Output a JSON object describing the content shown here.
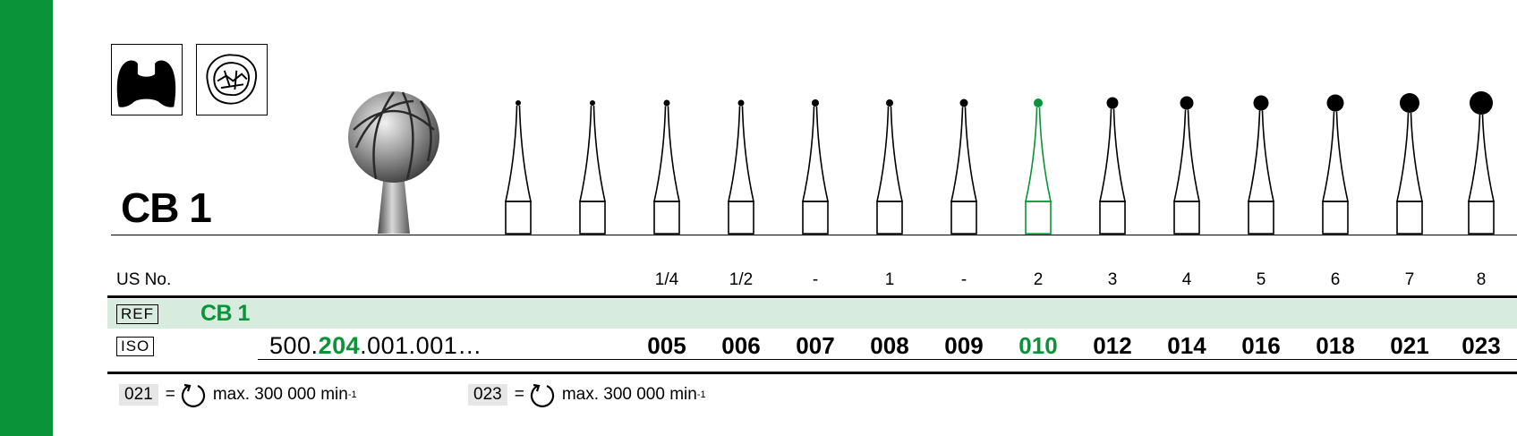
{
  "product": {
    "title": "CB 1"
  },
  "labels": {
    "us_no": "US No.",
    "ref_tag": "REF",
    "iso_tag": "ISO",
    "ref_code": "CB 1"
  },
  "iso_prefix": {
    "a": "500.",
    "b": "204",
    "c": ".001.001…"
  },
  "columns": [
    {
      "us": "",
      "iso": ""
    },
    {
      "us": "",
      "iso": ""
    },
    {
      "us": "1/4",
      "iso": "005"
    },
    {
      "us": "1/2",
      "iso": "006"
    },
    {
      "us": "-",
      "iso": "007"
    },
    {
      "us": "1",
      "iso": "008"
    },
    {
      "us": "-",
      "iso": "009"
    },
    {
      "us": "2",
      "iso": "010",
      "highlight": true
    },
    {
      "us": "3",
      "iso": "012"
    },
    {
      "us": "4",
      "iso": "014"
    },
    {
      "us": "5",
      "iso": "016"
    },
    {
      "us": "6",
      "iso": "018"
    },
    {
      "us": "7",
      "iso": "021"
    },
    {
      "us": "8",
      "iso": "023"
    }
  ],
  "footnotes": [
    {
      "code": "021",
      "eq": "=",
      "text": "max. 300 000 min",
      "unit_sup": "-1"
    },
    {
      "code": "023",
      "eq": "=",
      "text": "max. 300 000 min",
      "unit_sup": "-1"
    }
  ],
  "colors": {
    "brand_green": "#0a9338",
    "band_green": "#d7ecdf"
  },
  "icons": [
    "tooth-cavity-icon",
    "tooth-occlusal-icon",
    "rotation-icon"
  ]
}
